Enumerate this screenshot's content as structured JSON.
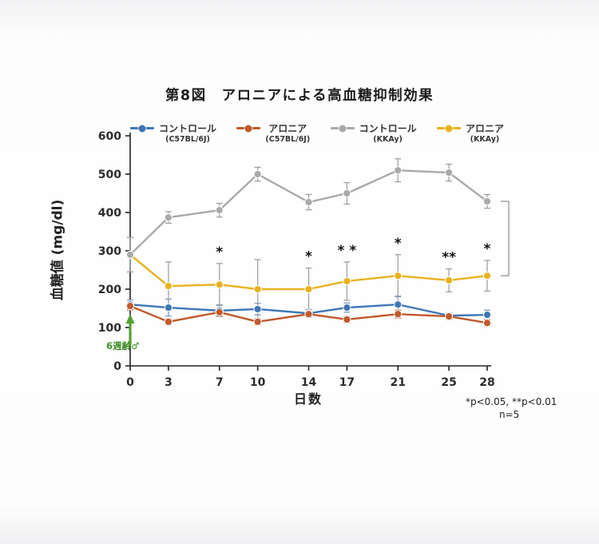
{
  "figure": {
    "title": "第8図　アロニアによる高血糖抑制効果",
    "annotation_arrow_label": "6週齢♂",
    "footnote_line1": "*p<0.05, **p<0.01",
    "footnote_line2": "n=5"
  },
  "colors": {
    "axis": "#222222",
    "arrow_green": "#53a032",
    "bracket_gray": "#9a9a9a",
    "significance": "#111111"
  },
  "chart_data": {
    "type": "line",
    "title": "第8図　アロニアによる高血糖抑制効果",
    "xlabel": "日数",
    "ylabel": "血糖値 (mg/dl)",
    "x": [
      0,
      3,
      7,
      10,
      14,
      17,
      21,
      25,
      28
    ],
    "ylim": [
      0,
      600
    ],
    "yticks": [
      0,
      100,
      200,
      300,
      400,
      500,
      600
    ],
    "grid": false,
    "legend_position": "top",
    "series": [
      {
        "name": "コントロール",
        "strain": "(C57BL/6J)",
        "color": "#3f76b5",
        "error_color": "#7d99bd",
        "values": [
          160,
          152,
          144,
          148,
          137,
          152,
          160,
          131,
          133
        ],
        "errors": [
          12,
          22,
          15,
          15,
          10,
          12,
          22,
          8,
          12
        ]
      },
      {
        "name": "アロニア",
        "strain": "(C57BL/6J)",
        "color": "#c0592b",
        "error_color": "#c47a50",
        "values": [
          156,
          115,
          140,
          115,
          135,
          121,
          135,
          129,
          112
        ],
        "errors": [
          10,
          8,
          10,
          8,
          8,
          8,
          10,
          8,
          8
        ]
      },
      {
        "name": "コントロール",
        "strain": "(KKAy)",
        "color": "#a9a9a9",
        "error_color": "#a0a0a0",
        "values": [
          290,
          387,
          406,
          500,
          427,
          450,
          510,
          504,
          429
        ],
        "errors": [
          45,
          15,
          18,
          18,
          20,
          28,
          30,
          22,
          18
        ]
      },
      {
        "name": "アロニア",
        "strain": "(KKAy)",
        "color": "#e8b21e",
        "error_color": "#a0a0a0",
        "values": [
          290,
          208,
          212,
          200,
          200,
          221,
          235,
          223,
          235
        ],
        "errors": [
          45,
          63,
          55,
          77,
          55,
          50,
          55,
          30,
          40
        ]
      }
    ],
    "significance": [
      {
        "x": 7,
        "label": "*"
      },
      {
        "x": 14,
        "label": "*"
      },
      {
        "x": 17,
        "label": "* *"
      },
      {
        "x": 21,
        "label": "*"
      },
      {
        "x": 25,
        "label": "**"
      },
      {
        "x": 28,
        "label": "*"
      }
    ]
  }
}
